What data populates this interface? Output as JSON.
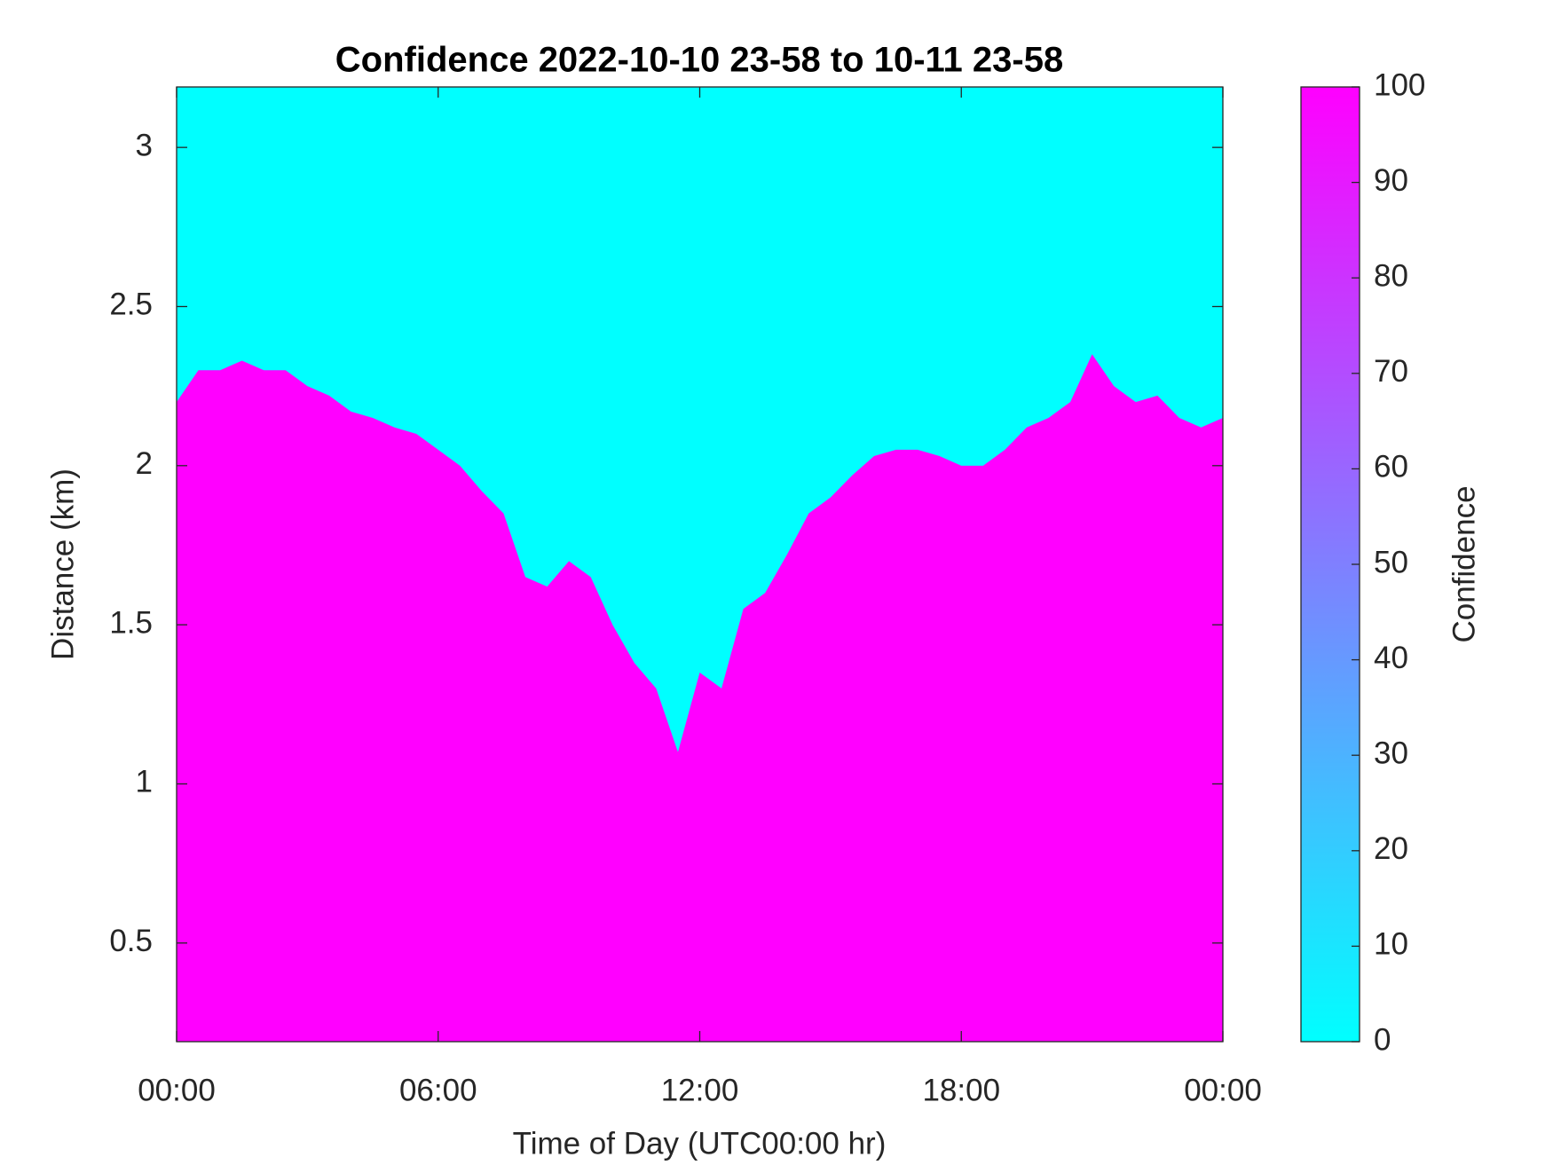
{
  "chart_data": {
    "type": "area",
    "title": "Confidence 2022-10-10 23-58 to 10-11 23-58",
    "x_label": "Time of Day (UTC00:00 hr)",
    "y_label": "Distance (km)",
    "x": [
      0,
      0.5,
      1,
      1.5,
      2,
      2.5,
      3,
      3.5,
      4,
      4.5,
      5,
      5.5,
      6,
      6.5,
      7,
      7.5,
      8,
      8.5,
      9,
      9.5,
      10,
      10.5,
      11,
      11.5,
      12,
      12.5,
      13,
      13.5,
      14,
      14.5,
      15,
      15.5,
      16,
      16.5,
      17,
      17.5,
      18,
      18.5,
      19,
      19.5,
      20,
      20.5,
      21,
      21.5,
      22,
      22.5,
      23,
      23.5,
      24
    ],
    "values": [
      2.2,
      2.3,
      2.3,
      2.33,
      2.3,
      2.3,
      2.25,
      2.22,
      2.17,
      2.15,
      2.12,
      2.1,
      2.05,
      2.0,
      1.92,
      1.85,
      1.65,
      1.62,
      1.7,
      1.65,
      1.5,
      1.38,
      1.3,
      1.1,
      1.35,
      1.3,
      1.55,
      1.6,
      1.72,
      1.85,
      1.9,
      1.97,
      2.03,
      2.05,
      2.05,
      2.03,
      2.0,
      2.0,
      2.05,
      2.12,
      2.15,
      2.2,
      2.35,
      2.25,
      2.2,
      2.22,
      2.15,
      2.12,
      2.15
    ],
    "color": "#ff00ff",
    "background": "#00ffff",
    "xlim": [
      0,
      24
    ],
    "xticks": [
      {
        "value": 0,
        "label": "00:00"
      },
      {
        "value": 6,
        "label": "06:00"
      },
      {
        "value": 12,
        "label": "12:00"
      },
      {
        "value": 18,
        "label": "18:00"
      },
      {
        "value": 24,
        "label": "00:00"
      }
    ],
    "ylim": [
      0.19,
      3.19
    ],
    "yticks": [
      0.5,
      1,
      1.5,
      2,
      2.5,
      3
    ],
    "colorbar": {
      "label": "Confidence",
      "lim": [
        0,
        100
      ],
      "ticks": [
        0,
        10,
        20,
        30,
        40,
        50,
        60,
        70,
        80,
        90,
        100
      ]
    }
  }
}
